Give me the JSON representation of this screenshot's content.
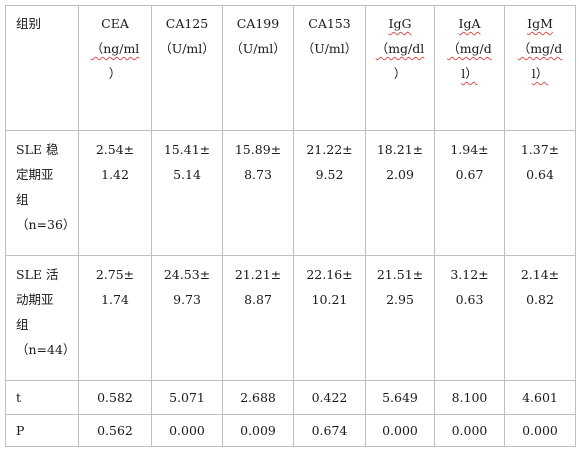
{
  "table": {
    "header": [
      {
        "lines": [
          "组别"
        ]
      },
      {
        "lines": [
          "CEA",
          "（ng/ml",
          "）"
        ]
      },
      {
        "lines": [
          "CA125",
          "（U/ml）"
        ]
      },
      {
        "lines": [
          "CA199",
          "（U/ml）"
        ]
      },
      {
        "lines": [
          "CA153",
          "（U/ml）"
        ]
      },
      {
        "lines": [
          "IgG",
          "（mg/dl",
          "）"
        ]
      },
      {
        "lines": [
          "IgA",
          "（mg/d",
          "l）"
        ]
      },
      {
        "lines": [
          "IgM",
          "（mg/d",
          "l）"
        ]
      }
    ],
    "rows": [
      {
        "group": [
          "SLE 稳",
          "定期亚",
          "组",
          "（n=36）"
        ],
        "values": [
          [
            "2.54±",
            "1.42"
          ],
          [
            "15.41±",
            "5.14"
          ],
          [
            "15.89±",
            "8.73"
          ],
          [
            "21.22±",
            "9.52"
          ],
          [
            "18.21±",
            "2.09"
          ],
          [
            "1.94±",
            "0.67"
          ],
          [
            "1.37±",
            "0.64"
          ]
        ]
      },
      {
        "group": [
          "SLE 活",
          "动期亚",
          "组",
          "（n=44）"
        ],
        "values": [
          [
            "2.75±",
            "1.74"
          ],
          [
            "24.53±",
            "9.73"
          ],
          [
            "21.21±",
            "8.87"
          ],
          [
            "22.16±",
            "10.21"
          ],
          [
            "21.51±",
            "2.95"
          ],
          [
            "3.12±",
            "0.63"
          ],
          [
            "2.14±",
            "0.82"
          ]
        ]
      },
      {
        "group": [
          "t"
        ],
        "values": [
          [
            "0.582"
          ],
          [
            "5.071"
          ],
          [
            "2.688"
          ],
          [
            "0.422"
          ],
          [
            "5.649"
          ],
          [
            "8.100"
          ],
          [
            "4.601"
          ]
        ]
      },
      {
        "group": [
          "P"
        ],
        "values": [
          [
            "0.562"
          ],
          [
            "0.000"
          ],
          [
            "0.009"
          ],
          [
            "0.674"
          ],
          [
            "0.000"
          ],
          [
            "0.000"
          ],
          [
            "0.000"
          ]
        ]
      }
    ]
  }
}
